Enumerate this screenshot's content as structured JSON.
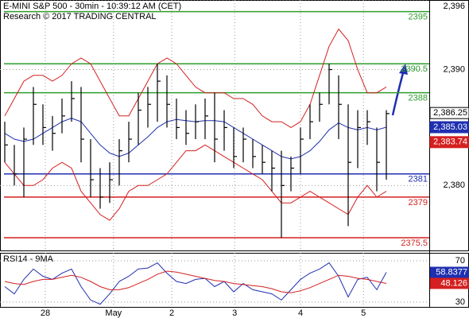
{
  "chart_data": [
    {
      "type": "ohlc",
      "title": "E-MINI S&P 500 - 30min - 10:39:12 AM (CET)",
      "subtitle": "Research © 2017 TRADING CENTRAL",
      "high": [
        2385.5,
        2383.5,
        2385,
        2388.5,
        2387,
        2386,
        2387.5,
        2389,
        2388.5,
        2384,
        2381.5,
        2382,
        2384,
        2385.5,
        2388,
        2388.5,
        2390.5,
        2389.5,
        2387.5,
        2386.5,
        2387,
        2387.5,
        2388,
        2386.5,
        2385,
        2385,
        2384,
        2383.5,
        2383,
        2383,
        2382.5,
        2385,
        2387,
        2388,
        2390.5,
        2389.5,
        2387,
        2386.5,
        2386.5,
        2385,
        2386.5
      ],
      "low": [
        2382,
        2380,
        2379,
        2383.5,
        2383.5,
        2383,
        2384.5,
        2385.5,
        2382,
        2379,
        2378,
        2378.5,
        2380,
        2382,
        2383.5,
        2385,
        2385.5,
        2385,
        2384,
        2383.5,
        2384,
        2384,
        2382,
        2383,
        2381.5,
        2382,
        2381.5,
        2381,
        2379.5,
        2375.5,
        2379.5,
        2381,
        2384,
        2385.5,
        2387,
        2384,
        2376.5,
        2381.5,
        2383.5,
        2379.5,
        2380.5
      ],
      "close": [
        2383.5,
        2381,
        2384,
        2387,
        2385,
        2384.5,
        2386,
        2387.5,
        2384,
        2380.5,
        2379,
        2380.5,
        2383,
        2384,
        2386.5,
        2387,
        2389,
        2387,
        2385,
        2384.5,
        2385.5,
        2386,
        2384,
        2385,
        2382.5,
        2384,
        2382.5,
        2382,
        2381.5,
        2380,
        2381.5,
        2384,
        2385.5,
        2387,
        2390,
        2387,
        2382,
        2385,
        2385.5,
        2382,
        2386.2
      ],
      "bar_color": "#000000",
      "series": [
        {
          "color": "#1f2fb0",
          "values": [
            2384.5,
            2384,
            2383.8,
            2384,
            2384.5,
            2385,
            2385.5,
            2385.8,
            2385.5,
            2384.5,
            2383.5,
            2382.8,
            2382.5,
            2382.8,
            2383.5,
            2384.2,
            2385,
            2385.5,
            2385.7,
            2385.6,
            2385.5,
            2385.6,
            2385.6,
            2385.5,
            2385,
            2384.5,
            2384,
            2383.5,
            2383,
            2382.5,
            2382.3,
            2382.5,
            2383,
            2383.8,
            2384.8,
            2385.4,
            2385,
            2384.8,
            2385,
            2384.8,
            2385.03
          ]
        },
        {
          "color": "#d42020",
          "values": [
            2386,
            2387.5,
            2389,
            2389.5,
            2389.5,
            2389,
            2389.5,
            2390.5,
            2391,
            2390.5,
            2389,
            2387.5,
            2386,
            2386,
            2387.5,
            2389,
            2390.5,
            2391,
            2390.5,
            2389.5,
            2388.5,
            2388,
            2388,
            2388,
            2387.5,
            2387.5,
            2387,
            2386,
            2385.5,
            2385.5,
            2385,
            2385.5,
            2387,
            2389.5,
            2392,
            2393.5,
            2392.5,
            2390,
            2388,
            2388,
            2388.5
          ]
        },
        {
          "color": "#d42020",
          "values": [
            2382,
            2381,
            2380,
            2380,
            2380.5,
            2381.5,
            2382,
            2381.5,
            2379.5,
            2378.5,
            2377.5,
            2377,
            2378,
            2379.5,
            2380,
            2380,
            2380.5,
            2381,
            2382,
            2383,
            2383,
            2383.5,
            2383,
            2382.5,
            2382,
            2381.5,
            2381,
            2380.5,
            2379.5,
            2378.5,
            2378.5,
            2379,
            2379.5,
            2379,
            2378.5,
            2378,
            2377.5,
            2379,
            2380,
            2379,
            2379.5
          ]
        }
      ],
      "levels": [
        {
          "value": 2395,
          "color": "#2e9e2e"
        },
        {
          "value": 2390.5,
          "color": "#2e9e2e"
        },
        {
          "value": 2388,
          "color": "#2e9e2e"
        },
        {
          "value": 2381,
          "color": "#1f2fb0"
        },
        {
          "value": 2379,
          "color": "#d42020"
        },
        {
          "value": 2375.5,
          "color": "#d42020"
        }
      ],
      "markers": [
        {
          "value": 2386.25,
          "label": "2,386.25",
          "color": "#ffffff"
        },
        {
          "value": 2385.03,
          "label": "2,385.03",
          "color": "#1f2fb0"
        },
        {
          "value": 2383.74,
          "label": "2,383.74",
          "color": "#d42020"
        }
      ],
      "ylim": [
        2374.4,
        2396
      ],
      "yticks": [
        {
          "value": 2380,
          "label": "2,380"
        },
        {
          "value": 2390,
          "label": "2,390"
        },
        {
          "value": 2396,
          "label": "2,396"
        }
      ],
      "xlim": [
        -0.5,
        44.5
      ],
      "xticks": [
        {
          "value": 4.25,
          "label": "28"
        },
        {
          "value": 11.4,
          "label": "May"
        },
        {
          "value": 17.5,
          "label": "2"
        },
        {
          "value": 24.1,
          "label": "3"
        },
        {
          "value": 31,
          "label": "4"
        },
        {
          "value": 37.6,
          "label": "5"
        }
      ],
      "grid": true
    },
    {
      "type": "line",
      "title": "RSI14 - 9MA",
      "series": [
        {
          "color": "#1f2fb0",
          "values": [
            45,
            38,
            52,
            62,
            55,
            52,
            58,
            62,
            45,
            32,
            28,
            38,
            50,
            55,
            62,
            63,
            68,
            58,
            50,
            48,
            52,
            53,
            45,
            50,
            40,
            48,
            42,
            40,
            38,
            32,
            42,
            52,
            58,
            62,
            68,
            55,
            35,
            52,
            54,
            42,
            58.8377
          ]
        },
        {
          "color": "#d42020",
          "values": [
            50,
            48,
            47,
            50,
            52,
            52,
            54,
            56,
            54,
            50,
            45,
            42,
            42,
            44,
            48,
            52,
            57,
            60,
            59,
            57,
            55,
            53,
            51,
            50,
            48,
            47,
            46,
            45,
            43,
            40,
            39,
            41,
            44,
            48,
            52,
            56,
            55,
            53,
            52,
            50,
            48.126
          ]
        }
      ],
      "markers": [
        {
          "value": 58.8377,
          "color": "#1f2fb0"
        },
        {
          "value": 48.126,
          "color": "#d42020"
        }
      ],
      "ylim": [
        25.4,
        77.7
      ],
      "yticks": [
        30,
        70
      ],
      "grid": true
    }
  ]
}
